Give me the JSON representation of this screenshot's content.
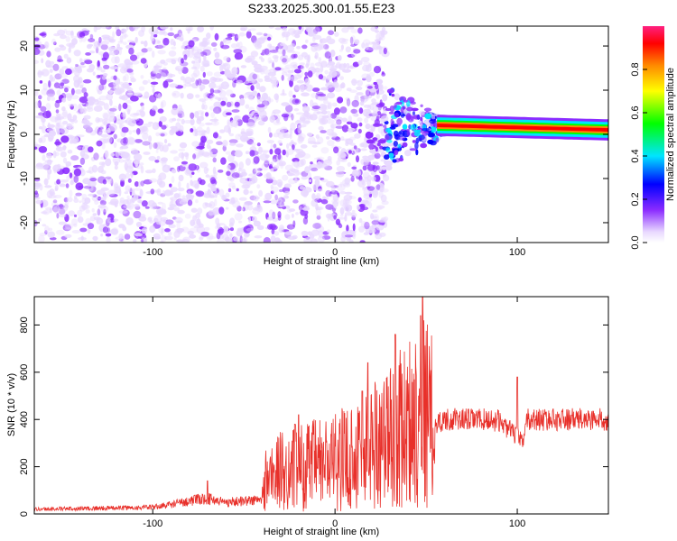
{
  "title": "S233.2025.300.01.55.E23",
  "chart_data": [
    {
      "type": "heatmap",
      "xlabel": "Height of straight line (km)",
      "ylabel": "Frequency (Hz)",
      "xlim": [
        -165,
        150
      ],
      "ylim": [
        -24.5,
        24.5
      ],
      "xticks": [
        -100,
        0,
        100
      ],
      "yticks": [
        -20,
        -10,
        0,
        10,
        20
      ],
      "colorbar": {
        "label": "Normalized spectral amplitude",
        "range": [
          0,
          1
        ],
        "ticks": [
          0.0,
          0.2,
          0.4,
          0.6,
          0.8
        ]
      },
      "features": {
        "noise_region_km": [
          -165,
          20
        ],
        "onset_km": 25,
        "steady_line_start_km": 60,
        "steady_line_frequency_hz": [
          2,
          1
        ],
        "steady_line_amplitude": 0.9
      },
      "grid": false
    },
    {
      "type": "line",
      "xlabel": "Height of straight line (km)",
      "ylabel": "SNR (10 * v/v)",
      "xlim": [
        -165,
        150
      ],
      "ylim": [
        0,
        920
      ],
      "xticks": [
        -100,
        0,
        100
      ],
      "yticks": [
        0,
        200,
        400,
        600,
        800
      ],
      "series_color": "#e8302a",
      "profile": {
        "x": [
          -165,
          -100,
          -90,
          -80,
          -70,
          -60,
          -50,
          -40,
          -38,
          -30,
          -20,
          -10,
          0,
          10,
          20,
          30,
          40,
          45,
          50,
          52,
          55,
          60,
          70,
          80,
          90,
          95,
          100,
          103,
          105,
          110,
          120,
          130,
          140,
          150
        ],
        "y": [
          20,
          28,
          40,
          55,
          65,
          50,
          55,
          60,
          150,
          180,
          200,
          210,
          220,
          250,
          300,
          330,
          380,
          420,
          450,
          400,
          380,
          400,
          400,
          400,
          395,
          360,
          330,
          300,
          400,
          400,
          400,
          400,
          400,
          400
        ],
        "peaks": [
          {
            "x": -70,
            "y": 140
          },
          {
            "x": -22,
            "y": 380
          },
          {
            "x": -20,
            "y": 420
          },
          {
            "x": 15,
            "y": 520
          },
          {
            "x": 18,
            "y": 640
          },
          {
            "x": 33,
            "y": 760
          },
          {
            "x": 47,
            "y": 840
          },
          {
            "x": 48,
            "y": 920
          },
          {
            "x": 100,
            "y": 580
          }
        ]
      },
      "grid": false
    }
  ]
}
